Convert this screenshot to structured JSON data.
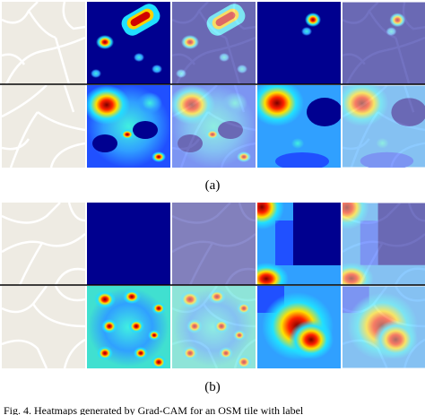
{
  "figure": {
    "panels": [
      {
        "label": "(a)"
      },
      {
        "label": "(b)"
      }
    ],
    "caption": "Fig. 4.   Heatmaps generated by Grad-CAM for an OSM tile with label"
  }
}
